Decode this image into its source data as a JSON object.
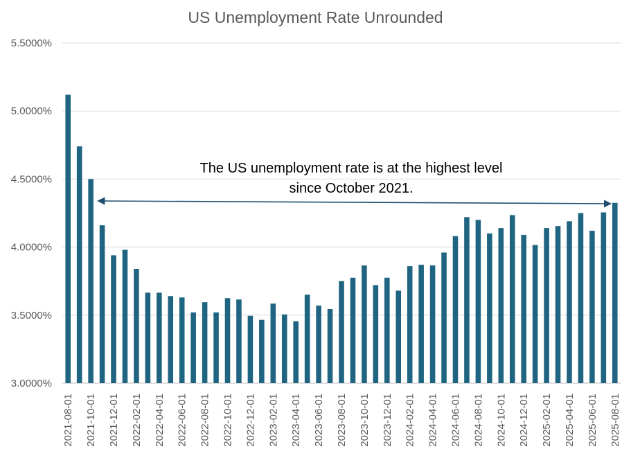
{
  "chart_data": {
    "type": "bar",
    "title": "US Unemployment Rate Unrounded",
    "xlabel": "",
    "ylabel": "",
    "ylim": [
      3.0,
      5.5
    ],
    "yticks": [
      3.0,
      3.5,
      4.0,
      4.5,
      5.0,
      5.5
    ],
    "ytick_labels": [
      "3.0000%",
      "3.5000%",
      "4.0000%",
      "4.5000%",
      "5.0000%",
      "5.5000%"
    ],
    "grid": "horizontal",
    "bar_color": "#1F6480",
    "categories": [
      "2021-08-01",
      "2021-09-01",
      "2021-10-01",
      "2021-11-01",
      "2021-12-01",
      "2022-01-01",
      "2022-02-01",
      "2022-03-01",
      "2022-04-01",
      "2022-05-01",
      "2022-06-01",
      "2022-07-01",
      "2022-08-01",
      "2022-09-01",
      "2022-10-01",
      "2022-11-01",
      "2022-12-01",
      "2023-01-01",
      "2023-02-01",
      "2023-03-01",
      "2023-04-01",
      "2023-05-01",
      "2023-06-01",
      "2023-07-01",
      "2023-08-01",
      "2023-09-01",
      "2023-10-01",
      "2023-11-01",
      "2023-12-01",
      "2024-01-01",
      "2024-02-01",
      "2024-03-01",
      "2024-04-01",
      "2024-05-01",
      "2024-06-01",
      "2024-07-01",
      "2024-08-01",
      "2024-09-01",
      "2024-10-01",
      "2024-11-01",
      "2024-12-01",
      "2025-01-01",
      "2025-02-01",
      "2025-03-01",
      "2025-04-01",
      "2025-05-01",
      "2025-06-01",
      "2025-07-01",
      "2025-08-01"
    ],
    "visible_tick_labels": [
      "2021-08-01",
      "2021-10-01",
      "2021-12-01",
      "2022-02-01",
      "2022-04-01",
      "2022-06-01",
      "2022-08-01",
      "2022-10-01",
      "2022-12-01",
      "2023-02-01",
      "2023-04-01",
      "2023-06-01",
      "2023-08-01",
      "2023-10-01",
      "2023-12-01",
      "2024-02-01",
      "2024-04-01",
      "2024-06-01",
      "2024-08-01",
      "2024-10-01",
      "2024-12-01",
      "2025-02-01",
      "2025-04-01",
      "2025-06-01",
      "2025-08-01"
    ],
    "values": [
      5.12,
      4.74,
      4.5,
      4.16,
      3.94,
      3.98,
      3.84,
      3.665,
      3.665,
      3.64,
      3.63,
      3.52,
      3.595,
      3.52,
      3.625,
      3.615,
      3.495,
      3.465,
      3.585,
      3.505,
      3.455,
      3.65,
      3.57,
      3.545,
      3.75,
      3.775,
      3.865,
      3.72,
      3.775,
      3.68,
      3.86,
      3.87,
      3.865,
      3.96,
      4.08,
      4.22,
      4.2,
      4.1,
      4.14,
      4.235,
      4.09,
      4.015,
      4.14,
      4.155,
      4.19,
      4.25,
      4.12,
      4.255,
      4.325
    ],
    "annotation": {
      "text_line1": "The US unemployment rate is at the highest level",
      "text_line2": "since October 2021.",
      "arrow_from": "2021-10-01",
      "arrow_to": "2025-08-01",
      "arrow_style": "double-headed"
    }
  }
}
